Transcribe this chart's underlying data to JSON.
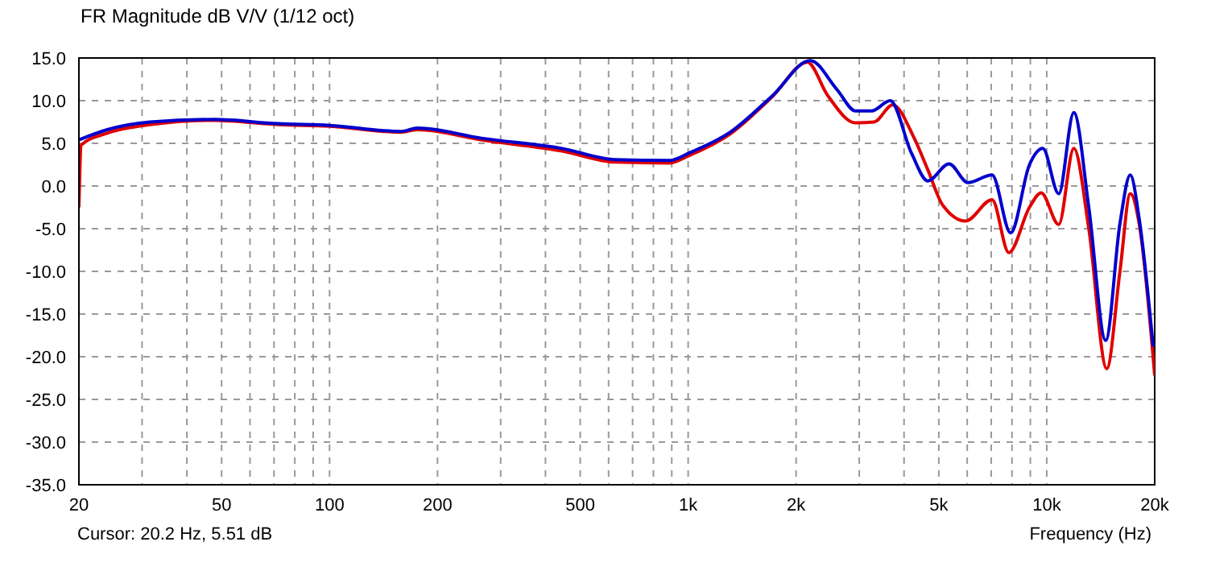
{
  "chart_data": {
    "type": "line",
    "title": "FR Magnitude dB V/V (1/12 oct)",
    "xlabel": "Frequency (Hz)",
    "annotations": [
      "Cursor: 20.2 Hz, 5.51 dB"
    ],
    "log": "x",
    "grid": true,
    "line_style": "solid",
    "marker": "none",
    "xlim": [
      20,
      20000
    ],
    "xticks": [
      20,
      {
        "value": 30,
        "label": null
      },
      {
        "value": 40,
        "label": null
      },
      50,
      {
        "value": 60,
        "label": null
      },
      {
        "value": 70,
        "label": null
      },
      {
        "value": 80,
        "label": null
      },
      {
        "value": 90,
        "label": null
      },
      100,
      200,
      {
        "value": 300,
        "label": null
      },
      {
        "value": 400,
        "label": null
      },
      500,
      {
        "value": 600,
        "label": null
      },
      {
        "value": 700,
        "label": null
      },
      {
        "value": 800,
        "label": null
      },
      {
        "value": 900,
        "label": null
      },
      {
        "value": 1000,
        "label": "1k"
      },
      {
        "value": 2000,
        "label": "2k"
      },
      {
        "value": 3000,
        "label": null
      },
      {
        "value": 4000,
        "label": null
      },
      {
        "value": 5000,
        "label": "5k"
      },
      {
        "value": 6000,
        "label": null
      },
      {
        "value": 7000,
        "label": null
      },
      {
        "value": 8000,
        "label": null
      },
      {
        "value": 9000,
        "label": null
      },
      {
        "value": 10000,
        "label": "10k"
      },
      {
        "value": 20000,
        "label": "20k"
      }
    ],
    "ylim": [
      -35,
      15
    ],
    "yticks": [
      {
        "value": 15,
        "label": "15.0"
      },
      {
        "value": 10,
        "label": "10.0"
      },
      {
        "value": 5,
        "label": "5.0"
      },
      {
        "value": 0,
        "label": "0.0"
      },
      {
        "value": -5,
        "label": "-5.0"
      },
      {
        "value": -10,
        "label": "-10.0"
      },
      {
        "value": -15,
        "label": "-15.0"
      },
      {
        "value": -20,
        "label": "-20.0"
      },
      {
        "value": -25,
        "label": "-25.0"
      },
      {
        "value": -30,
        "label": "-30.0"
      },
      {
        "value": -35,
        "label": "-35.0"
      }
    ],
    "series": [
      {
        "color": "#e00000",
        "x": [
          20,
          20.3,
          24,
          31.6,
          47.6,
          72,
          100,
          158,
          176,
          265,
          445,
          625,
          887,
          1010,
          1310,
          1720,
          2150,
          2450,
          2930,
          3300,
          3720,
          4270,
          4660,
          5120,
          5940,
          7040,
          7840,
          8950,
          9650,
          10800,
          11900,
          13100,
          14700,
          16000,
          17100,
          18100,
          20000
        ],
        "values": [
          -2.5,
          4.8,
          6.2,
          7.2,
          7.7,
          7.2,
          7.0,
          6.3,
          6.6,
          5.4,
          4.1,
          2.8,
          2.7,
          3.6,
          6.1,
          10.5,
          14.5,
          10.6,
          7.4,
          7.5,
          9.5,
          5.6,
          1.9,
          -2.2,
          -4.1,
          -1.6,
          -7.8,
          -2.5,
          -0.8,
          -4.5,
          4.4,
          -5,
          -21.4,
          -10,
          -0.9,
          -4.4,
          -22.2
        ]
      },
      {
        "color": "#0000cc",
        "x": [
          20,
          24,
          31.6,
          47.6,
          72,
          100,
          158,
          176,
          265,
          445,
          625,
          887,
          1010,
          1310,
          1720,
          2190,
          2600,
          2930,
          3250,
          3660,
          4200,
          4660,
          5340,
          6030,
          7040,
          7930,
          8950,
          9750,
          10800,
          11900,
          13100,
          14600,
          16000,
          17100,
          18100,
          19800
        ],
        "values": [
          5.4,
          6.6,
          7.5,
          7.8,
          7.3,
          7.1,
          6.4,
          6.8,
          5.6,
          4.4,
          3.1,
          3.0,
          3.9,
          6.3,
          10.6,
          14.7,
          11.3,
          8.8,
          8.8,
          10,
          3.8,
          0.6,
          2.6,
          0.4,
          1.3,
          -5.5,
          2.5,
          4.4,
          -0.9,
          8.6,
          -2.5,
          -18.1,
          -4.4,
          1.3,
          -3.8,
          -18.8
        ]
      }
    ]
  }
}
